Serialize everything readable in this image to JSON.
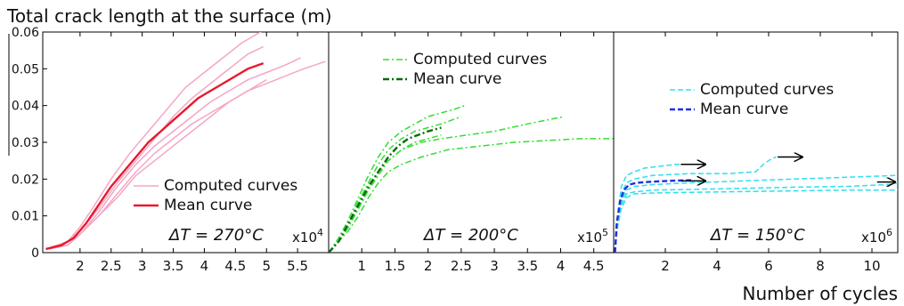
{
  "figure": {
    "ylabel": "Total crack length at the surface (m)",
    "xlabel": "Number of cycles"
  },
  "chart_data": [
    {
      "type": "line",
      "annotation": "ΔT = 270°C",
      "multiplier": "x10",
      "multiplier_exp": "4",
      "xlim": [
        1.4,
        6.0
      ],
      "ylim": [
        0,
        0.06
      ],
      "xticks": [
        "2",
        "2.5",
        "3",
        "3.5",
        "4",
        "4.5",
        "5",
        "5.5"
      ],
      "xtick_values": [
        2,
        2.5,
        3,
        3.5,
        4,
        4.5,
        5,
        5.5
      ],
      "yticks": [
        "0",
        "0.01",
        "0.02",
        "0.03",
        "0.04",
        "0.05",
        "0.06"
      ],
      "ytick_values": [
        0,
        0.01,
        0.02,
        0.03,
        0.04,
        0.05,
        0.06
      ],
      "legend": {
        "placement": "lower-right",
        "computed": "Computed curves",
        "mean": "Mean curve"
      },
      "colors": {
        "computed": "#f4a6c6",
        "mean": "#e8192c"
      },
      "series": [
        {
          "name": "Computed curves",
          "x": [
            1.45,
            1.8,
            2.0,
            2.2,
            2.5,
            2.8,
            3.1,
            3.4,
            3.7,
            4.0,
            4.3,
            4.6,
            5.0
          ],
          "y": [
            0.001,
            0.003,
            0.007,
            0.012,
            0.02,
            0.027,
            0.033,
            0.039,
            0.045,
            0.049,
            0.053,
            0.057,
            0.061
          ]
        },
        {
          "name": "Computed curves",
          "x": [
            1.45,
            1.8,
            2.0,
            2.3,
            2.6,
            2.9,
            3.2,
            3.5,
            3.8,
            4.1,
            4.4,
            4.7,
            4.95
          ],
          "y": [
            0.001,
            0.003,
            0.006,
            0.012,
            0.019,
            0.025,
            0.031,
            0.037,
            0.042,
            0.046,
            0.05,
            0.054,
            0.056
          ]
        },
        {
          "name": "Computed curves",
          "x": [
            1.45,
            1.8,
            2.0,
            2.3,
            2.6,
            2.9,
            3.2,
            3.5,
            3.8,
            4.1,
            4.4,
            4.7,
            5.0,
            5.3,
            5.55
          ],
          "y": [
            0.001,
            0.002,
            0.005,
            0.011,
            0.018,
            0.024,
            0.029,
            0.033,
            0.037,
            0.041,
            0.044,
            0.047,
            0.049,
            0.051,
            0.053
          ]
        },
        {
          "name": "Computed curves",
          "x": [
            1.5,
            1.8,
            2.0,
            2.3,
            2.6,
            2.9,
            3.2,
            3.5,
            3.8,
            4.1,
            4.4,
            4.7,
            5.0,
            5.3,
            5.6,
            5.95
          ],
          "y": [
            0.001,
            0.002,
            0.005,
            0.01,
            0.016,
            0.022,
            0.027,
            0.031,
            0.035,
            0.038,
            0.041,
            0.044,
            0.046,
            0.048,
            0.05,
            0.052
          ]
        },
        {
          "name": "Computed curves",
          "x": [
            1.5,
            1.8,
            2.0,
            2.3,
            2.6,
            2.9,
            3.2,
            3.5,
            3.8,
            4.1,
            4.4,
            4.7,
            5.0
          ],
          "y": [
            0.001,
            0.002,
            0.005,
            0.01,
            0.015,
            0.021,
            0.025,
            0.029,
            0.033,
            0.037,
            0.041,
            0.044,
            0.047
          ]
        },
        {
          "name": "Mean curve",
          "mean": true,
          "x": [
            1.45,
            1.7,
            1.9,
            2.1,
            2.3,
            2.5,
            2.7,
            2.9,
            3.1,
            3.3,
            3.5,
            3.7,
            3.9,
            4.1,
            4.3,
            4.5,
            4.7,
            4.95
          ],
          "y": [
            0.001,
            0.002,
            0.004,
            0.008,
            0.013,
            0.018,
            0.022,
            0.026,
            0.03,
            0.033,
            0.036,
            0.039,
            0.042,
            0.044,
            0.046,
            0.048,
            0.05,
            0.0515
          ]
        }
      ]
    },
    {
      "type": "line",
      "annotation": "ΔT = 200°C",
      "multiplier": "x10",
      "multiplier_exp": "5",
      "xlim": [
        0.5,
        4.8
      ],
      "ylim": [
        0,
        0.06
      ],
      "xticks": [
        "1",
        "1.5",
        "2",
        "2.5",
        "3",
        "3.5",
        "4",
        "4.5"
      ],
      "xtick_values": [
        1,
        1.5,
        2,
        2.5,
        3,
        3.5,
        4,
        4.5
      ],
      "legend": {
        "placement": "top-left",
        "computed": "Computed curves",
        "mean": "Mean curve"
      },
      "colors": {
        "computed": "#33dd33",
        "mean": "#0a6a0a"
      },
      "series": [
        {
          "name": "Computed curves",
          "x": [
            0.5,
            0.65,
            0.8,
            0.95,
            1.1,
            1.25,
            1.4,
            1.6,
            1.8,
            2.0,
            2.2,
            2.4,
            2.55
          ],
          "y": [
            0.0,
            0.004,
            0.009,
            0.015,
            0.021,
            0.026,
            0.03,
            0.033,
            0.035,
            0.037,
            0.038,
            0.039,
            0.04
          ]
        },
        {
          "name": "Computed curves",
          "x": [
            0.5,
            0.65,
            0.8,
            0.95,
            1.1,
            1.25,
            1.4,
            1.6,
            1.8,
            2.0,
            2.2,
            2.5
          ],
          "y": [
            0.0,
            0.003,
            0.008,
            0.014,
            0.019,
            0.024,
            0.028,
            0.031,
            0.033,
            0.034,
            0.035,
            0.037
          ]
        },
        {
          "name": "Computed curves",
          "x": [
            0.5,
            0.65,
            0.8,
            0.95,
            1.1,
            1.25,
            1.4,
            1.6,
            1.9,
            2.2,
            2.6,
            3.0,
            3.5,
            4.05
          ],
          "y": [
            0.0,
            0.003,
            0.007,
            0.012,
            0.017,
            0.021,
            0.025,
            0.028,
            0.03,
            0.031,
            0.032,
            0.033,
            0.035,
            0.037
          ]
        },
        {
          "name": "Computed curves",
          "x": [
            0.5,
            0.65,
            0.8,
            0.95,
            1.1,
            1.25,
            1.4,
            1.6,
            1.9,
            2.3,
            2.8,
            3.3,
            3.8,
            4.3,
            4.8
          ],
          "y": [
            0.0,
            0.003,
            0.006,
            0.01,
            0.015,
            0.019,
            0.022,
            0.024,
            0.026,
            0.028,
            0.029,
            0.03,
            0.0305,
            0.031,
            0.031
          ]
        },
        {
          "name": "Computed curves",
          "x": [
            0.5,
            0.65,
            0.8,
            0.95,
            1.1,
            1.25,
            1.4,
            1.6,
            1.8,
            2.0,
            2.2
          ],
          "y": [
            0.0,
            0.003,
            0.007,
            0.012,
            0.017,
            0.022,
            0.025,
            0.028,
            0.03,
            0.031,
            0.032
          ]
        },
        {
          "name": "Mean curve",
          "mean": true,
          "x": [
            0.5,
            0.65,
            0.8,
            0.95,
            1.1,
            1.25,
            1.4,
            1.55,
            1.7,
            1.85,
            2.0,
            2.2
          ],
          "y": [
            0.0,
            0.003,
            0.008,
            0.013,
            0.018,
            0.022,
            0.026,
            0.029,
            0.031,
            0.032,
            0.033,
            0.034
          ]
        }
      ]
    },
    {
      "type": "line",
      "annotation": "ΔT = 150°C",
      "multiplier": "x10",
      "multiplier_exp": "6",
      "xlim": [
        0,
        11
      ],
      "ylim": [
        0,
        0.06
      ],
      "xticks": [
        "2",
        "4",
        "6",
        "8",
        "10"
      ],
      "xtick_values": [
        2,
        4,
        6,
        8,
        10
      ],
      "legend": {
        "placement": "top-center",
        "computed": "Computed curves",
        "mean": "Mean curve"
      },
      "colors": {
        "computed": "#33ddee",
        "mean": "#1f2ee0",
        "arrow": "#000000"
      },
      "series": [
        {
          "name": "Computed curves",
          "x": [
            0.05,
            0.15,
            0.3,
            0.5,
            0.8,
            1.2,
            1.8,
            2.4,
            3.0
          ],
          "y": [
            0.0,
            0.01,
            0.018,
            0.021,
            0.022,
            0.023,
            0.0235,
            0.024,
            0.024
          ]
        },
        {
          "name": "Computed curves",
          "x": [
            0.05,
            0.15,
            0.3,
            0.5,
            0.8,
            1.5,
            3.0,
            4.5,
            5.5,
            5.8,
            6.1,
            6.3
          ],
          "y": [
            0.0,
            0.009,
            0.016,
            0.019,
            0.02,
            0.021,
            0.0215,
            0.0215,
            0.022,
            0.024,
            0.0255,
            0.026
          ]
        },
        {
          "name": "Computed curves",
          "x": [
            0.05,
            0.15,
            0.3,
            0.5,
            0.8,
            1.5,
            3.0,
            5.0,
            7.0,
            9.0,
            11.0
          ],
          "y": [
            0.0,
            0.008,
            0.014,
            0.017,
            0.018,
            0.0185,
            0.019,
            0.0195,
            0.02,
            0.0205,
            0.021
          ]
        },
        {
          "name": "Computed curves",
          "x": [
            0.05,
            0.15,
            0.3,
            0.5,
            0.8,
            1.5,
            3.0,
            5.0,
            7.0,
            9.0,
            10.6,
            11.0
          ],
          "y": [
            0.0,
            0.008,
            0.013,
            0.016,
            0.0165,
            0.017,
            0.0172,
            0.0175,
            0.0178,
            0.018,
            0.0185,
            0.019
          ]
        },
        {
          "name": "Computed curves",
          "x": [
            0.05,
            0.15,
            0.3,
            0.5,
            0.8,
            1.5,
            3.0,
            5.0,
            7.0,
            9.0,
            11.0
          ],
          "y": [
            0.0,
            0.007,
            0.012,
            0.015,
            0.016,
            0.0162,
            0.0164,
            0.0166,
            0.0168,
            0.017,
            0.017
          ]
        },
        {
          "name": "Mean curve",
          "mean": true,
          "x": [
            0.05,
            0.12,
            0.25,
            0.4,
            0.6,
            0.9,
            1.3,
            1.8,
            2.4,
            3.0
          ],
          "y": [
            0.0,
            0.008,
            0.014,
            0.017,
            0.0185,
            0.019,
            0.0192,
            0.0194,
            0.0196,
            0.0197
          ]
        }
      ],
      "arrows": [
        {
          "x0": 2.6,
          "x1": 3.55,
          "y": 0.024
        },
        {
          "x0": 2.6,
          "x1": 3.55,
          "y": 0.0195
        },
        {
          "x0": 6.35,
          "x1": 7.3,
          "y": 0.026
        },
        {
          "x0": 10.2,
          "x1": 10.9,
          "y": 0.0192
        }
      ]
    }
  ]
}
